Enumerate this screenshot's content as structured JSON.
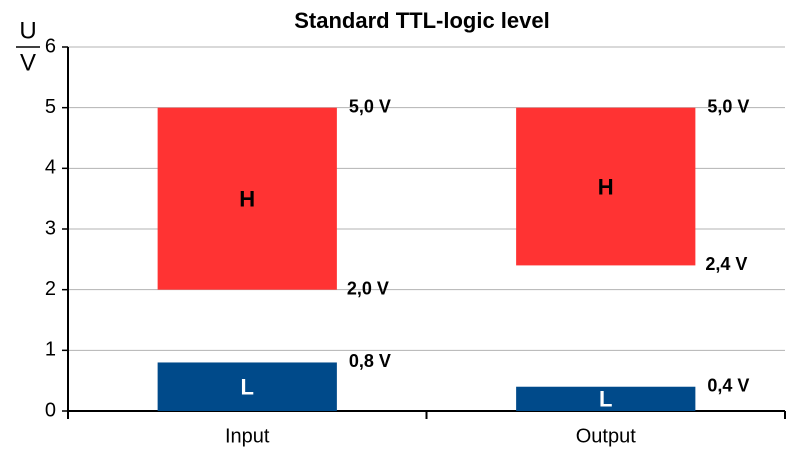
{
  "chart_data": {
    "type": "floating-bar",
    "title": "Standard TTL-logic level",
    "y_label_top": "U",
    "y_label_bottom": "V",
    "categories": [
      "Input",
      "Output"
    ],
    "series": [
      {
        "name": "L",
        "color": "#004a8a",
        "text_color": "#ffffff",
        "low": [
          0,
          0
        ],
        "high": [
          0.8,
          0.4
        ],
        "high_labels": [
          "0,8 V",
          "0,4 V"
        ]
      },
      {
        "name": "H",
        "color": "#ff3333",
        "text_color": "#000000",
        "low": [
          2.0,
          2.4
        ],
        "high": [
          5.0,
          5.0
        ],
        "low_labels": [
          "2,0 V",
          "2,4 V"
        ],
        "high_labels": [
          "5,0 V",
          "5,0 V"
        ]
      }
    ],
    "ylim": [
      0,
      6
    ],
    "yticks": [
      0,
      1,
      2,
      3,
      4,
      5,
      6
    ],
    "grid": true
  }
}
